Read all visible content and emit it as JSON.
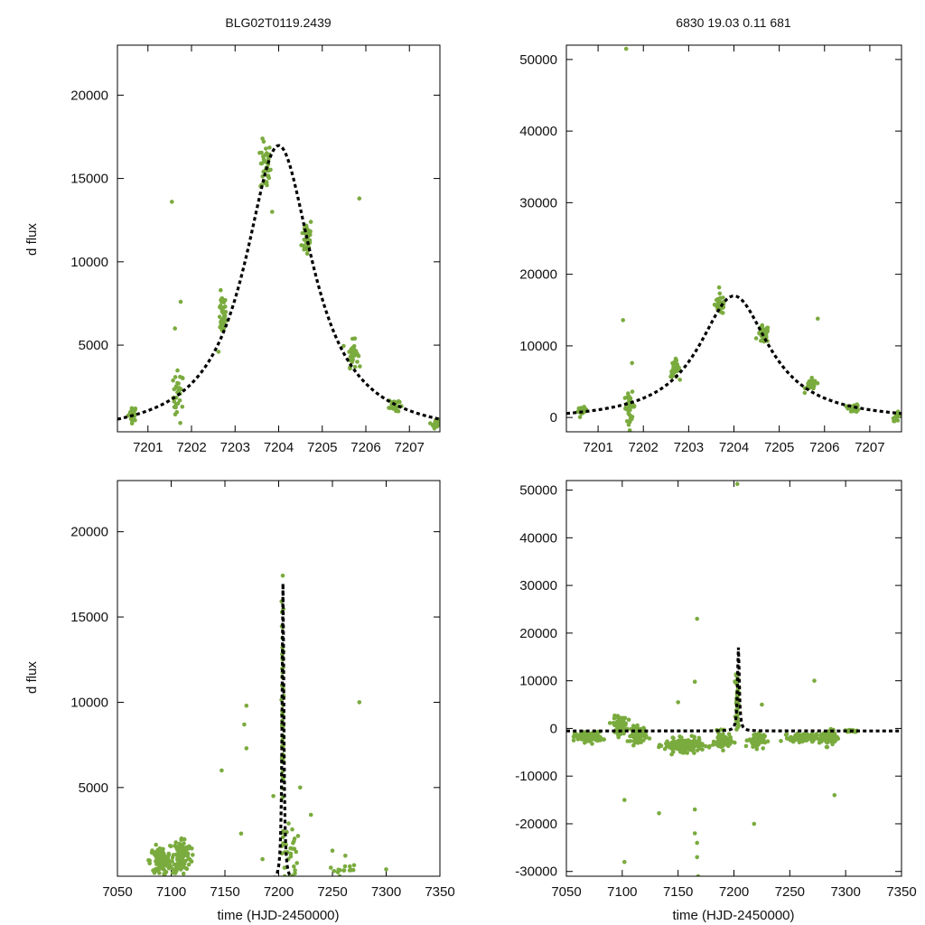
{
  "titles": {
    "left": "BLG02T0119.2439",
    "right": "6830   19.03   0.11   681"
  },
  "axis_labels": {
    "ylabel": "d flux",
    "xlabel": "time (HJD-2450000)"
  },
  "colors": {
    "points": "#7aab3e",
    "model": "#000000"
  },
  "chart_data": [
    {
      "type": "scatter",
      "panel": "top-left",
      "title": "BLG02T0119.2439",
      "ylabel": "d flux",
      "xlim": [
        7200.3,
        7207.7
      ],
      "ylim": [
        -200,
        23000
      ],
      "xticks": [
        7201,
        7202,
        7203,
        7204,
        7205,
        7206,
        7207
      ],
      "yticks": [
        5000,
        10000,
        15000,
        20000
      ],
      "model": {
        "t0": 7204.0,
        "peak": 17500,
        "width": 0.95
      },
      "clusters": [
        {
          "x": 7200.65,
          "y": 900,
          "dx": 0.08,
          "dy": 380,
          "n": 24
        },
        {
          "x": 7201.7,
          "y": 1900,
          "dx": 0.1,
          "dy": 1300,
          "n": 30
        },
        {
          "x": 7202.7,
          "y": 6800,
          "dx": 0.08,
          "dy": 1000,
          "n": 36
        },
        {
          "x": 7203.7,
          "y": 15700,
          "dx": 0.1,
          "dy": 1300,
          "n": 40
        },
        {
          "x": 7204.65,
          "y": 11500,
          "dx": 0.1,
          "dy": 1000,
          "n": 40
        },
        {
          "x": 7205.7,
          "y": 4500,
          "dx": 0.1,
          "dy": 650,
          "n": 34
        },
        {
          "x": 7206.65,
          "y": 1400,
          "dx": 0.1,
          "dy": 380,
          "n": 28
        },
        {
          "x": 7207.6,
          "y": 280,
          "dx": 0.07,
          "dy": 220,
          "n": 18
        }
      ],
      "points": [
        [
          7201.55,
          13600
        ],
        [
          7201.62,
          6000
        ],
        [
          7201.75,
          7600
        ],
        [
          7205.85,
          13800
        ],
        [
          7203.85,
          13000
        ],
        [
          7202.62,
          4600
        ]
      ]
    },
    {
      "type": "scatter",
      "panel": "top-right",
      "title": "6830   19.03   0.11   681",
      "xlim": [
        7200.3,
        7207.7
      ],
      "ylim": [
        -2000,
        52000
      ],
      "xticks": [
        7201,
        7202,
        7203,
        7204,
        7205,
        7206,
        7207
      ],
      "yticks": [
        0,
        10000,
        20000,
        30000,
        40000,
        50000
      ],
      "model": {
        "t0": 7204.0,
        "peak": 17500,
        "width": 0.95
      },
      "clusters": [
        {
          "x": 7200.65,
          "y": 900,
          "dx": 0.08,
          "dy": 420,
          "n": 24
        },
        {
          "x": 7201.7,
          "y": 1500,
          "dx": 0.1,
          "dy": 1600,
          "n": 34
        },
        {
          "x": 7202.7,
          "y": 6800,
          "dx": 0.08,
          "dy": 1000,
          "n": 36
        },
        {
          "x": 7203.7,
          "y": 15800,
          "dx": 0.1,
          "dy": 1200,
          "n": 40
        },
        {
          "x": 7204.65,
          "y": 11600,
          "dx": 0.1,
          "dy": 1000,
          "n": 40
        },
        {
          "x": 7205.7,
          "y": 4500,
          "dx": 0.1,
          "dy": 700,
          "n": 34
        },
        {
          "x": 7206.65,
          "y": 1300,
          "dx": 0.1,
          "dy": 450,
          "n": 28
        },
        {
          "x": 7207.6,
          "y": 100,
          "dx": 0.07,
          "dy": 500,
          "n": 18
        }
      ],
      "points": [
        [
          7201.55,
          13600
        ],
        [
          7201.62,
          51500
        ],
        [
          7205.85,
          13800
        ],
        [
          7201.75,
          7600
        ],
        [
          7201.7,
          -1800
        ]
      ]
    },
    {
      "type": "scatter",
      "panel": "bottom-left",
      "ylabel": "d flux",
      "xlabel": "time (HJD-2450000)",
      "xlim": [
        7050,
        7350
      ],
      "ylim": [
        -200,
        23000
      ],
      "xticks": [
        7050,
        7100,
        7150,
        7200,
        7250,
        7300,
        7350
      ],
      "yticks": [
        5000,
        10000,
        15000,
        20000
      ],
      "model": {
        "t0": 7204.0,
        "peak": 17500,
        "width": 0.95
      },
      "clusters": [
        {
          "x": 7090,
          "y": 700,
          "dx": 8,
          "dy": 700,
          "n": 120
        },
        {
          "x": 7110,
          "y": 1000,
          "dx": 7,
          "dy": 900,
          "n": 110
        },
        {
          "x": 7203.5,
          "y": 9000,
          "dx": 0.8,
          "dy": 6000,
          "n": 60
        },
        {
          "x": 7210,
          "y": 1200,
          "dx": 6,
          "dy": 1600,
          "n": 30
        },
        {
          "x": 7260,
          "y": 200,
          "dx": 12,
          "dy": 300,
          "n": 14
        }
      ],
      "points": [
        [
          7170,
          9800
        ],
        [
          7168,
          8700
        ],
        [
          7170,
          7300
        ],
        [
          7147,
          6000
        ],
        [
          7275,
          10000
        ],
        [
          7220,
          5000
        ],
        [
          7230,
          3400
        ],
        [
          7165,
          2300
        ],
        [
          7185,
          800
        ],
        [
          7195,
          4500
        ],
        [
          7250,
          1300
        ],
        [
          7262,
          1000
        ],
        [
          7300,
          200
        ]
      ]
    },
    {
      "type": "scatter",
      "panel": "bottom-right",
      "xlabel": "time (HJD-2450000)",
      "xlim": [
        7050,
        7350
      ],
      "ylim": [
        -31000,
        52000
      ],
      "xticks": [
        7050,
        7100,
        7150,
        7200,
        7250,
        7300,
        7350
      ],
      "yticks": [
        -30000,
        -20000,
        -10000,
        0,
        10000,
        20000,
        30000,
        40000,
        50000
      ],
      "model": {
        "t0": 7204.0,
        "peak": 17500,
        "width": 0.95
      },
      "clusters": [
        {
          "x": 7070,
          "y": -1800,
          "dx": 10,
          "dy": 900,
          "n": 110
        },
        {
          "x": 7098,
          "y": 800,
          "dx": 5,
          "dy": 1400,
          "n": 90
        },
        {
          "x": 7115,
          "y": -1200,
          "dx": 6,
          "dy": 1400,
          "n": 80
        },
        {
          "x": 7155,
          "y": -3500,
          "dx": 14,
          "dy": 1100,
          "n": 200
        },
        {
          "x": 7190,
          "y": -2600,
          "dx": 6,
          "dy": 1500,
          "n": 70
        },
        {
          "x": 7203,
          "y": 6000,
          "dx": 1.2,
          "dy": 5000,
          "n": 50
        },
        {
          "x": 7220,
          "y": -2500,
          "dx": 6,
          "dy": 1300,
          "n": 80
        },
        {
          "x": 7262,
          "y": -2000,
          "dx": 10,
          "dy": 700,
          "n": 120
        },
        {
          "x": 7285,
          "y": -1900,
          "dx": 7,
          "dy": 1400,
          "n": 70
        },
        {
          "x": 7305,
          "y": -500,
          "dx": 5,
          "dy": 200,
          "n": 40
        }
      ],
      "points": [
        [
          7203,
          51300
        ],
        [
          7167,
          23000
        ],
        [
          7165,
          9800
        ],
        [
          7272,
          10000
        ],
        [
          7165,
          -17000
        ],
        [
          7165,
          -22000
        ],
        [
          7167,
          -24000
        ],
        [
          7167,
          -27000
        ],
        [
          7168,
          -31000
        ],
        [
          7102,
          -15000
        ],
        [
          7102,
          -28000
        ],
        [
          7133,
          -17800
        ],
        [
          7218,
          -20000
        ],
        [
          7290,
          -14000
        ],
        [
          7225,
          5000
        ],
        [
          7150,
          5500
        ]
      ]
    }
  ]
}
